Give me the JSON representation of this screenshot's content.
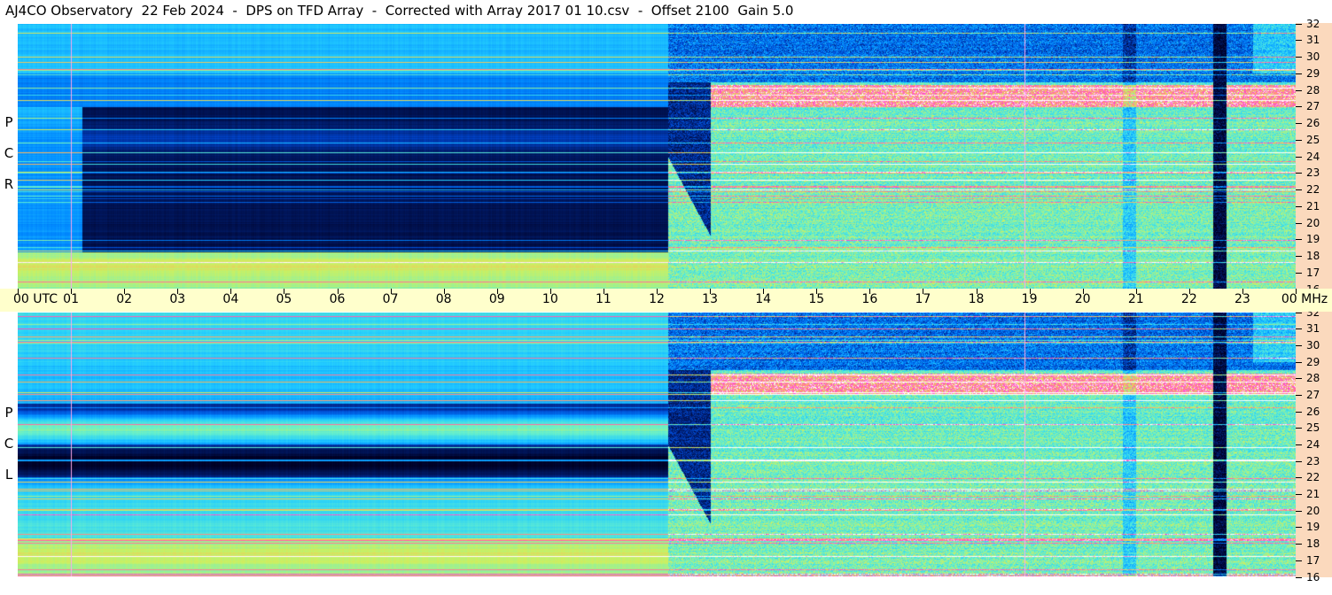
{
  "title": "AJ4CO Observatory  22 Feb 2024  -  DPS on TFD Array  -  Corrected with Array 2017 01 10.csv  -  Offset 2100  Gain 5.0",
  "panels": [
    {
      "letters": [
        "P",
        "C",
        "R"
      ]
    },
    {
      "letters": [
        "P",
        "C",
        "L"
      ]
    }
  ],
  "time_axis": {
    "labels": [
      "00 UTC",
      "01",
      "02",
      "03",
      "04",
      "05",
      "06",
      "07",
      "08",
      "09",
      "10",
      "11",
      "12",
      "13",
      "14",
      "15",
      "16",
      "17",
      "18",
      "19",
      "20",
      "21",
      "22",
      "23",
      "00 MHz"
    ]
  },
  "chart_data": {
    "type": "heatmap",
    "title": "AJ4CO Observatory  22 Feb 2024  -  DPS on TFD Array  -  Corrected with Array 2017 01 10.csv  -  Offset 2100  Gain 5.0",
    "x_unit": "UTC",
    "y_unit": "MHz",
    "xlim": [
      0,
      24
    ],
    "ylim": [
      16,
      32
    ],
    "x_ticks": [
      "00",
      "01",
      "02",
      "03",
      "04",
      "05",
      "06",
      "07",
      "08",
      "09",
      "10",
      "11",
      "12",
      "13",
      "14",
      "15",
      "16",
      "17",
      "18",
      "19",
      "20",
      "21",
      "22",
      "23",
      "00"
    ],
    "y_ticks": [
      16,
      17,
      18,
      19,
      20,
      21,
      22,
      23,
      24,
      25,
      26,
      27,
      28,
      29,
      30,
      31,
      32
    ],
    "panels": [
      "RCP",
      "LCP"
    ],
    "colormap": [
      "#000022",
      "#001a66",
      "#0044cc",
      "#0088ff",
      "#22ccff",
      "#66f0cc",
      "#ccf060",
      "#ffb060",
      "#ff40d0",
      "#ffffff"
    ]
  }
}
